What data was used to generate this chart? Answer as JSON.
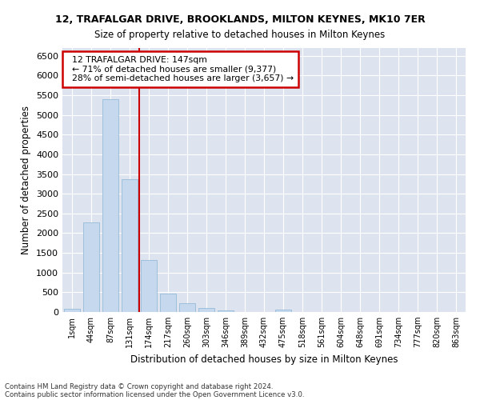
{
  "title": "12, TRAFALGAR DRIVE, BROOKLANDS, MILTON KEYNES, MK10 7ER",
  "subtitle": "Size of property relative to detached houses in Milton Keynes",
  "xlabel": "Distribution of detached houses by size in Milton Keynes",
  "ylabel": "Number of detached properties",
  "footnote1": "Contains HM Land Registry data © Crown copyright and database right 2024.",
  "footnote2": "Contains public sector information licensed under the Open Government Licence v3.0.",
  "annotation_line1": "12 TRAFALGAR DRIVE: 147sqm",
  "annotation_line2": "← 71% of detached houses are smaller (9,377)",
  "annotation_line3": "28% of semi-detached houses are larger (3,657) →",
  "bar_color": "#c5d8ee",
  "bar_edge_color": "#8ab4d4",
  "background_color": "#dde4f0",
  "grid_color": "#ffffff",
  "fig_background": "#ffffff",
  "vline_color": "#cc0000",
  "vline_x": 3.5,
  "categories": [
    "1sqm",
    "44sqm",
    "87sqm",
    "131sqm",
    "174sqm",
    "217sqm",
    "260sqm",
    "303sqm",
    "346sqm",
    "389sqm",
    "432sqm",
    "475sqm",
    "518sqm",
    "561sqm",
    "604sqm",
    "648sqm",
    "691sqm",
    "734sqm",
    "777sqm",
    "820sqm",
    "863sqm"
  ],
  "values": [
    75,
    2280,
    5400,
    3380,
    1310,
    475,
    215,
    105,
    50,
    0,
    0,
    60,
    0,
    0,
    0,
    0,
    0,
    0,
    0,
    0,
    0
  ],
  "ylim": [
    0,
    6700
  ],
  "yticks": [
    0,
    500,
    1000,
    1500,
    2000,
    2500,
    3000,
    3500,
    4000,
    4500,
    5000,
    5500,
    6000,
    6500
  ]
}
